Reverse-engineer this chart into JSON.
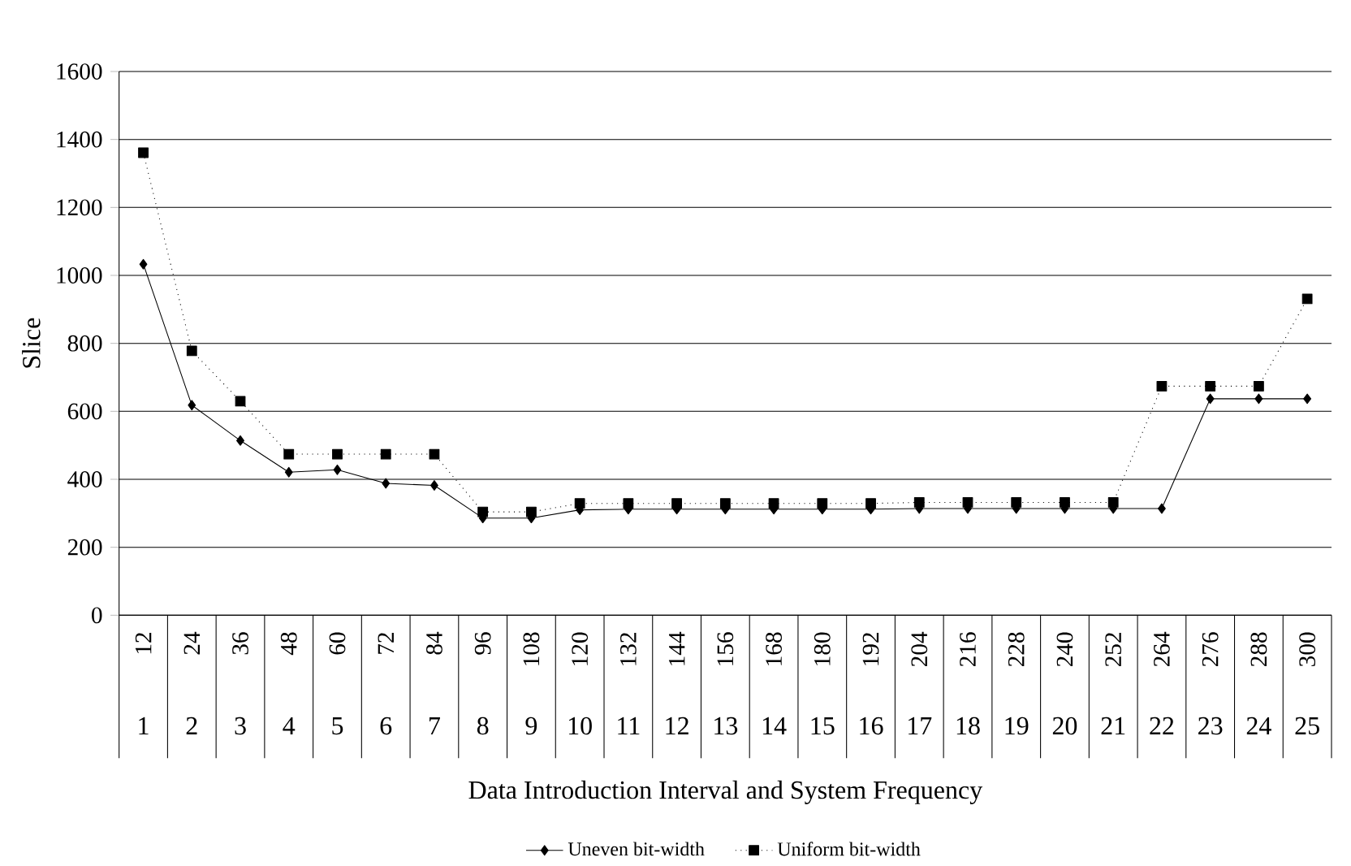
{
  "chart_data": {
    "type": "line",
    "ylabel": "Slice",
    "xlabel": "Data Introduction Interval and System Frequency",
    "categories": [
      "12",
      "24",
      "36",
      "48",
      "60",
      "72",
      "84",
      "96",
      "108",
      "120",
      "132",
      "144",
      "156",
      "168",
      "180",
      "192",
      "204",
      "216",
      "228",
      "240",
      "252",
      "264",
      "276",
      "288",
      "300"
    ],
    "annotations": [
      "1",
      "2",
      "3",
      "4",
      "5",
      "6",
      "7",
      "8",
      "9",
      "10",
      "11",
      "12",
      "13",
      "14",
      "15",
      "16",
      "17",
      "18",
      "19",
      "20",
      "21",
      "22",
      "23",
      "24",
      "25"
    ],
    "series": [
      {
        "name": "Uneven bit-width",
        "color": "#000000",
        "marker": "diamond",
        "line_style": "solid",
        "values": [
          1033,
          618,
          514,
          421,
          428,
          388,
          382,
          286,
          286,
          310,
          312,
          312,
          312,
          312,
          312,
          312,
          314,
          314,
          314,
          314,
          314,
          314,
          637,
          637,
          637
        ]
      },
      {
        "name": "Uniform bit-width",
        "color": "#000000",
        "marker": "square",
        "line_style": "dotted",
        "values": [
          1361,
          778,
          630,
          474,
          474,
          474,
          474,
          304,
          304,
          329,
          329,
          329,
          329,
          329,
          329,
          329,
          332,
          332,
          332,
          332,
          332,
          674,
          674,
          674,
          931
        ]
      }
    ],
    "ylim": [
      0,
      1600
    ],
    "yticks": [
      0,
      200,
      400,
      600,
      800,
      1000,
      1200,
      1400,
      1600
    ],
    "grid": "y",
    "legend": "bottom"
  }
}
